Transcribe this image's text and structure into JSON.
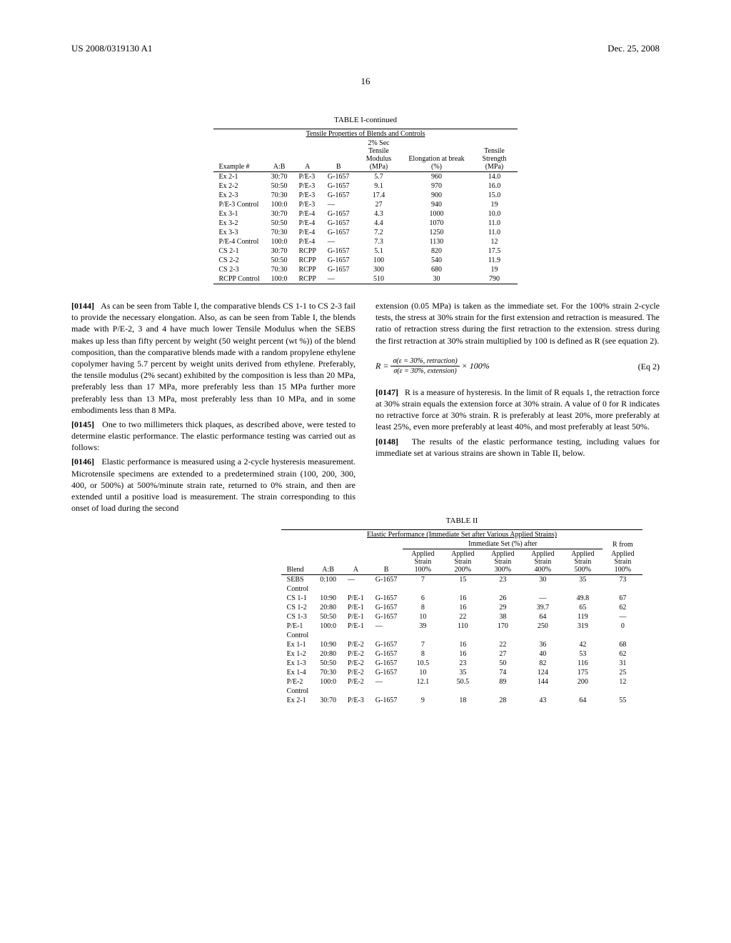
{
  "header": {
    "left": "US 2008/0319130 A1",
    "right": "Dec. 25, 2008"
  },
  "page_number": "16",
  "table1": {
    "caption": "TABLE I-continued",
    "subcaption": "Tensile Properties of Blends and Controls",
    "columns": [
      "Example #",
      "A:B",
      "A",
      "B",
      "2% Sec Tensile Modulus (MPa)",
      "Elongation at break (%)",
      "Tensile Strength (MPa)"
    ],
    "rows": [
      [
        "Ex 2-1",
        "30:70",
        "P/E-3",
        "G-1657",
        "5.7",
        "960",
        "14.0"
      ],
      [
        "Ex 2-2",
        "50:50",
        "P/E-3",
        "G-1657",
        "9.1",
        "970",
        "16.0"
      ],
      [
        "Ex 2-3",
        "70:30",
        "P/E-3",
        "G-1657",
        "17.4",
        "900",
        "15.0"
      ],
      [
        "P/E-3 Control",
        "100:0",
        "P/E-3",
        "—",
        "27",
        "940",
        "19"
      ],
      [
        "Ex 3-1",
        "30:70",
        "P/E-4",
        "G-1657",
        "4.3",
        "1000",
        "10.0"
      ],
      [
        "Ex 3-2",
        "50:50",
        "P/E-4",
        "G-1657",
        "4.4",
        "1070",
        "11.0"
      ],
      [
        "Ex 3-3",
        "70:30",
        "P/E-4",
        "G-1657",
        "7.2",
        "1250",
        "11.0"
      ],
      [
        "P/E-4 Control",
        "100:0",
        "P/E-4",
        "—",
        "7.3",
        "1130",
        "12"
      ],
      [
        "CS 2-1",
        "30:70",
        "RCPP",
        "G-1657",
        "5.1",
        "820",
        "17.5"
      ],
      [
        "CS 2-2",
        "50:50",
        "RCPP",
        "G-1657",
        "100",
        "540",
        "11.9"
      ],
      [
        "CS 2-3",
        "70:30",
        "RCPP",
        "G-1657",
        "300",
        "680",
        "19"
      ],
      [
        "RCPP Control",
        "100:0",
        "RCPP",
        "—",
        "510",
        "30",
        "790"
      ]
    ]
  },
  "p0144_num": "[0144]",
  "p0144": "As can be seen from Table I, the comparative blends CS 1-1 to CS 2-3 fail to provide the necessary elongation. Also, as can be seen from Table I, the blends made with P/E-2, 3 and 4 have much lower Tensile Modulus when the SEBS makes up less than fifty percent by weight (50 weight percent (wt %)) of the blend composition, than the comparative blends made with a random propylene ethylene copolymer having 5.7 percent by weight units derived from ethylene. Preferably, the tensile modulus (2% secant) exhibited by the composition is less than 20 MPa, preferably less than 17 MPa, more preferably less than 15 MPa further more preferably less than 13 MPa, most preferably less than 10 MPa, and in some embodiments less than 8 MPa.",
  "p0145_num": "[0145]",
  "p0145": "One to two millimeters thick plaques, as described above, were tested to determine elastic performance. The elastic performance testing was carried out as follows:",
  "p0146_num": "[0146]",
  "p0146": "Elastic performance is measured using a 2-cycle hysteresis measurement. Microtensile specimens are extended to a predetermined strain (100, 200, 300, 400, or 500%) at 500%/minute strain rate, returned to 0% strain, and then are extended until a positive load is measurement. The strain corresponding to this onset of load during the second",
  "col2_a": "extension (0.05 MPa) is taken as the immediate set. For the 100% strain 2-cycle tests, the stress at 30% strain for the first extension and retraction is measured. The ratio of retraction stress during the first retraction to the extension. stress during the first retraction at 30% strain multiplied by 100 is defined as R (see equation 2).",
  "eq_label": "(Eq 2)",
  "eq_num": "σ(ε = 30%, retraction)",
  "eq_den": "σ(ε = 30%, extension)",
  "eq_pre": "R = ",
  "eq_post": " × 100%",
  "p0147_num": "[0147]",
  "p0147": "R is a measure of hysteresis. In the limit of R equals 1, the retraction force at 30% strain equals the extension force at 30% strain. A value of 0 for R indicates no retractive force at 30% strain. R is preferably at least 20%, more preferably at least 25%, even more preferably at least 40%, and most preferably at least 50%.",
  "p0148_num": "[0148]",
  "p0148": "The results of the elastic performance testing, including values for immediate set at various strains are shown in Table II, below.",
  "table2": {
    "caption": "TABLE II",
    "subcaption": "Elastic Performance (Immediate Set after Various Applied Strains)",
    "span_header": "Immediate Set (%) after",
    "r_header": "R from",
    "columns": [
      "Blend",
      "A:B",
      "A",
      "B",
      "Applied Strain 100%",
      "Applied Strain 200%",
      "Applied Strain 300%",
      "Applied Strain 400%",
      "Applied Strain 500%",
      "Applied Strain 100%"
    ],
    "rows": [
      [
        "SEBS Control",
        "0:100",
        "—",
        "G-1657",
        "7",
        "15",
        "23",
        "30",
        "35",
        "73"
      ],
      [
        "CS 1-1",
        "10:90",
        "P/E-1",
        "G-1657",
        "6",
        "16",
        "26",
        "—",
        "49.8",
        "67"
      ],
      [
        "CS 1-2",
        "20:80",
        "P/E-1",
        "G-1657",
        "8",
        "16",
        "29",
        "39.7",
        "65",
        "62"
      ],
      [
        "CS 1-3",
        "50:50",
        "P/E-1",
        "G-1657",
        "10",
        "22",
        "38",
        "64",
        "119",
        "—"
      ],
      [
        "P/E-1 Control",
        "100:0",
        "P/E-1",
        "—",
        "39",
        "110",
        "170",
        "250",
        "319",
        "0"
      ],
      [
        "Ex 1-1",
        "10:90",
        "P/E-2",
        "G-1657",
        "7",
        "16",
        "22",
        "36",
        "42",
        "68"
      ],
      [
        "Ex 1-2",
        "20:80",
        "P/E-2",
        "G-1657",
        "8",
        "16",
        "27",
        "40",
        "53",
        "62"
      ],
      [
        "Ex 1-3",
        "50:50",
        "P/E-2",
        "G-1657",
        "10.5",
        "23",
        "50",
        "82",
        "116",
        "31"
      ],
      [
        "Ex 1-4",
        "70:30",
        "P/E-2",
        "G-1657",
        "10",
        "35",
        "74",
        "124",
        "175",
        "25"
      ],
      [
        "P/E-2 Control",
        "100:0",
        "P/E-2",
        "—",
        "12.1",
        "50.5",
        "89",
        "144",
        "200",
        "12"
      ],
      [
        "Ex 2-1",
        "30:70",
        "P/E-3",
        "G-1657",
        "9",
        "18",
        "28",
        "43",
        "64",
        "55"
      ]
    ]
  }
}
